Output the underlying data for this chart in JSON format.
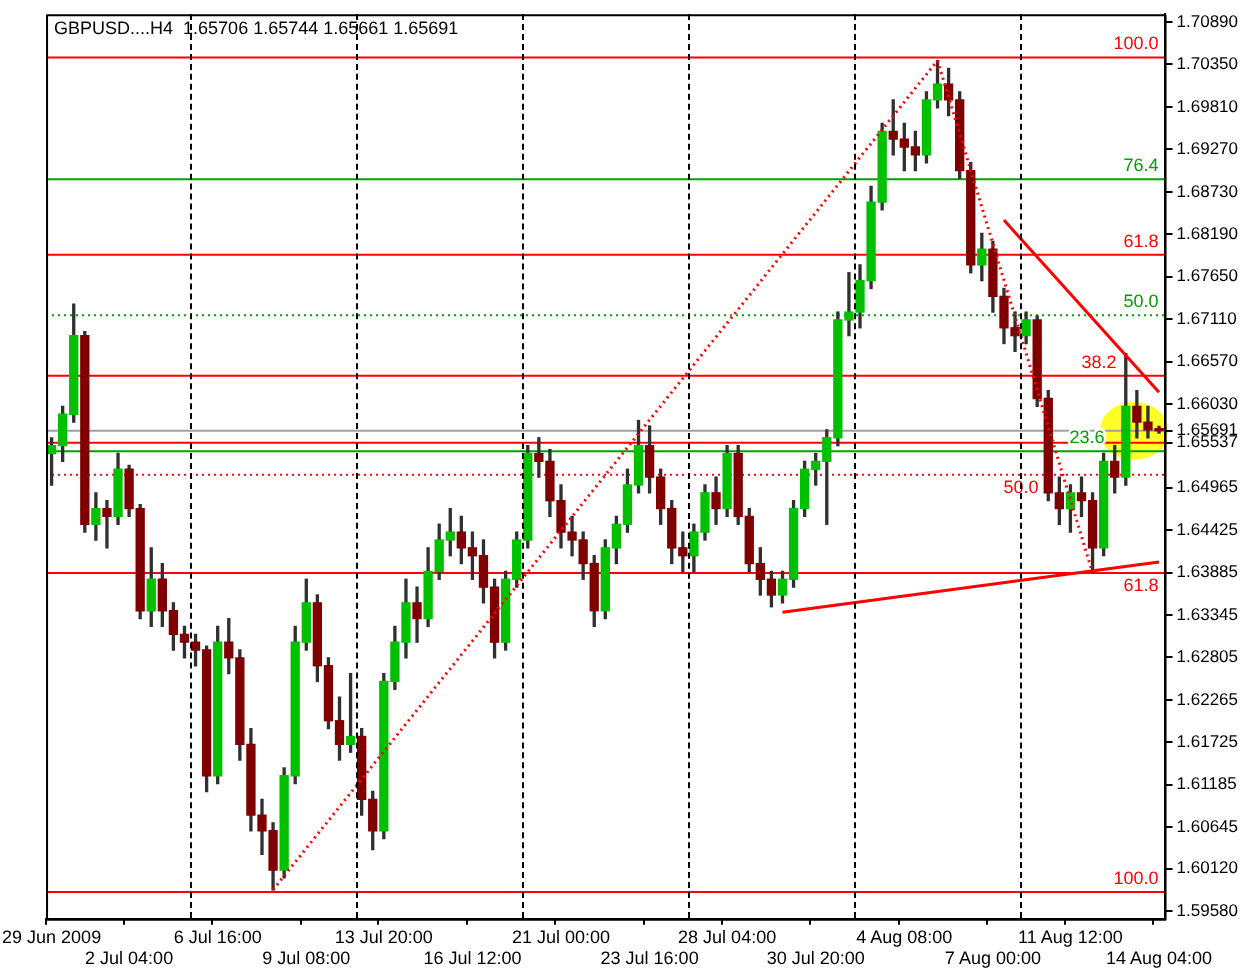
{
  "chart_data": {
    "type": "candlestick",
    "title": "GBPUSD....H4  1.65706 1.65744 1.65661 1.65691",
    "categories": [
      "29 Jun 2009",
      null,
      null,
      null,
      null,
      null,
      null,
      "2 Jul 04:00",
      null,
      null,
      null,
      null,
      null,
      null,
      null,
      "6 Jul 16:00",
      null,
      null,
      null,
      null,
      null,
      null,
      null,
      "9 Jul 08:00",
      null,
      null,
      null,
      null,
      null,
      null,
      "13 Jul 20:00",
      null,
      null,
      null,
      null,
      null,
      null,
      null,
      "16 Jul 12:00",
      null,
      null,
      null,
      null,
      null,
      null,
      null,
      "21 Jul 00:00",
      null,
      null,
      null,
      null,
      null,
      null,
      null,
      "23 Jul 16:00",
      null,
      null,
      null,
      null,
      null,
      null,
      "28 Jul 04:00",
      null,
      null,
      null,
      null,
      null,
      null,
      null,
      "30 Jul 20:00",
      null,
      null,
      null,
      null,
      null,
      null,
      null,
      "4 Aug 08:00",
      null,
      null,
      null,
      null,
      null,
      null,
      null,
      "7 Aug 00:00",
      null,
      null,
      null,
      null,
      null,
      null,
      "11 Aug 12:00",
      null,
      null,
      null,
      null,
      null,
      null,
      null,
      "14 Aug 04:00"
    ],
    "ohlc": [
      [
        1.654,
        1.656,
        1.65,
        1.655
      ],
      [
        1.655,
        1.66,
        1.653,
        1.659
      ],
      [
        1.659,
        1.673,
        1.658,
        1.669
      ],
      [
        1.669,
        1.6695,
        1.644,
        1.645
      ],
      [
        1.645,
        1.649,
        1.643,
        1.647
      ],
      [
        1.647,
        1.648,
        1.642,
        1.646
      ],
      [
        1.646,
        1.654,
        1.645,
        1.652
      ],
      [
        1.652,
        1.6525,
        1.646,
        1.647
      ],
      [
        1.647,
        1.6475,
        1.633,
        1.634
      ],
      [
        1.634,
        1.642,
        1.632,
        1.638
      ],
      [
        1.638,
        1.64,
        1.632,
        1.634
      ],
      [
        1.634,
        1.635,
        1.629,
        1.631
      ],
      [
        1.631,
        1.632,
        1.628,
        1.63
      ],
      [
        1.63,
        1.631,
        1.627,
        1.629
      ],
      [
        1.629,
        1.6295,
        1.611,
        1.613
      ],
      [
        1.613,
        1.632,
        1.612,
        1.63
      ],
      [
        1.63,
        1.633,
        1.626,
        1.628
      ],
      [
        1.628,
        1.629,
        1.615,
        1.617
      ],
      [
        1.617,
        1.619,
        1.606,
        1.608
      ],
      [
        1.608,
        1.61,
        1.603,
        1.606
      ],
      [
        1.606,
        1.607,
        1.5985,
        1.601
      ],
      [
        1.601,
        1.614,
        1.6,
        1.613
      ],
      [
        1.613,
        1.632,
        1.612,
        1.63
      ],
      [
        1.63,
        1.638,
        1.629,
        1.635
      ],
      [
        1.635,
        1.636,
        1.625,
        1.627
      ],
      [
        1.627,
        1.628,
        1.619,
        1.62
      ],
      [
        1.62,
        1.623,
        1.615,
        1.617
      ],
      [
        1.617,
        1.626,
        1.616,
        1.618
      ],
      [
        1.618,
        1.619,
        1.608,
        1.61
      ],
      [
        1.61,
        1.611,
        1.6036,
        1.606
      ],
      [
        1.606,
        1.626,
        1.605,
        1.625
      ],
      [
        1.625,
        1.632,
        1.624,
        1.63
      ],
      [
        1.63,
        1.638,
        1.628,
        1.635
      ],
      [
        1.635,
        1.637,
        1.63,
        1.633
      ],
      [
        1.633,
        1.642,
        1.632,
        1.639
      ],
      [
        1.639,
        1.645,
        1.638,
        1.643
      ],
      [
        1.643,
        1.647,
        1.641,
        1.644
      ],
      [
        1.644,
        1.646,
        1.64,
        1.642
      ],
      [
        1.642,
        1.644,
        1.638,
        1.641
      ],
      [
        1.641,
        1.643,
        1.635,
        1.637
      ],
      [
        1.637,
        1.638,
        1.628,
        1.63
      ],
      [
        1.63,
        1.639,
        1.629,
        1.638
      ],
      [
        1.638,
        1.644,
        1.637,
        1.643
      ],
      [
        1.643,
        1.655,
        1.642,
        1.654
      ],
      [
        1.654,
        1.656,
        1.651,
        1.653
      ],
      [
        1.653,
        1.6545,
        1.646,
        1.648
      ],
      [
        1.648,
        1.65,
        1.642,
        1.644
      ],
      [
        1.644,
        1.646,
        1.641,
        1.643
      ],
      [
        1.643,
        1.644,
        1.638,
        1.64
      ],
      [
        1.64,
        1.641,
        1.632,
        1.634
      ],
      [
        1.634,
        1.643,
        1.633,
        1.642
      ],
      [
        1.642,
        1.646,
        1.64,
        1.645
      ],
      [
        1.645,
        1.652,
        1.644,
        1.65
      ],
      [
        1.65,
        1.6582,
        1.649,
        1.655
      ],
      [
        1.655,
        1.6575,
        1.649,
        1.651
      ],
      [
        1.651,
        1.652,
        1.645,
        1.647
      ],
      [
        1.647,
        1.648,
        1.64,
        1.642
      ],
      [
        1.642,
        1.644,
        1.639,
        1.641
      ],
      [
        1.641,
        1.645,
        1.639,
        1.644
      ],
      [
        1.644,
        1.65,
        1.643,
        1.649
      ],
      [
        1.649,
        1.651,
        1.645,
        1.647
      ],
      [
        1.647,
        1.655,
        1.646,
        1.654
      ],
      [
        1.654,
        1.655,
        1.645,
        1.646
      ],
      [
        1.646,
        1.647,
        1.639,
        1.64
      ],
      [
        1.64,
        1.642,
        1.636,
        1.638
      ],
      [
        1.638,
        1.639,
        1.6345,
        1.636
      ],
      [
        1.636,
        1.639,
        1.635,
        1.638
      ],
      [
        1.638,
        1.648,
        1.637,
        1.647
      ],
      [
        1.647,
        1.653,
        1.646,
        1.652
      ],
      [
        1.652,
        1.654,
        1.65,
        1.653
      ],
      [
        1.653,
        1.657,
        1.645,
        1.656
      ],
      [
        1.656,
        1.672,
        1.655,
        1.671
      ],
      [
        1.671,
        1.677,
        1.669,
        1.672
      ],
      [
        1.672,
        1.678,
        1.67,
        1.676
      ],
      [
        1.676,
        1.688,
        1.675,
        1.686
      ],
      [
        1.686,
        1.696,
        1.685,
        1.695
      ],
      [
        1.695,
        1.699,
        1.692,
        1.694
      ],
      [
        1.694,
        1.696,
        1.69,
        1.693
      ],
      [
        1.693,
        1.695,
        1.69,
        1.692
      ],
      [
        1.692,
        1.7,
        1.691,
        1.699
      ],
      [
        1.699,
        1.704,
        1.698,
        1.701
      ],
      [
        1.701,
        1.703,
        1.697,
        1.699
      ],
      [
        1.699,
        1.7,
        1.689,
        1.69
      ],
      [
        1.69,
        1.691,
        1.677,
        1.678
      ],
      [
        1.678,
        1.682,
        1.676,
        1.68
      ],
      [
        1.68,
        1.681,
        1.672,
        1.674
      ],
      [
        1.674,
        1.675,
        1.668,
        1.67
      ],
      [
        1.67,
        1.672,
        1.667,
        1.669
      ],
      [
        1.669,
        1.672,
        1.668,
        1.671
      ],
      [
        1.671,
        1.6715,
        1.66,
        1.661
      ],
      [
        1.661,
        1.662,
        1.648,
        1.649
      ],
      [
        1.649,
        1.651,
        1.645,
        1.647
      ],
      [
        1.647,
        1.65,
        1.644,
        1.649
      ],
      [
        1.649,
        1.651,
        1.646,
        1.648
      ],
      [
        1.648,
        1.649,
        1.6388,
        1.642
      ],
      [
        1.642,
        1.654,
        1.641,
        1.653
      ],
      [
        1.653,
        1.655,
        1.649,
        1.651
      ],
      [
        1.651,
        1.6667,
        1.65,
        1.66
      ],
      [
        1.66,
        1.662,
        1.656,
        1.658
      ],
      [
        1.658,
        1.66,
        1.656,
        1.657
      ],
      [
        1.65706,
        1.65744,
        1.65661,
        1.65691
      ]
    ],
    "series": [
      {
        "type": "line",
        "color": "#ff0000",
        "values": [
          null,
          null,
          null,
          null,
          null,
          null,
          null,
          null,
          null,
          null,
          null,
          null,
          null,
          null,
          null,
          null,
          null,
          null,
          null,
          null,
          null,
          null,
          null,
          null,
          null,
          null,
          null,
          null,
          null,
          null,
          null,
          null,
          null,
          null,
          null,
          null,
          null,
          null,
          null,
          null,
          null,
          null,
          null,
          null,
          null,
          null,
          null,
          null,
          null,
          null,
          null,
          null,
          null,
          null,
          null,
          null,
          null,
          null,
          null,
          null,
          null,
          null,
          null,
          null,
          null,
          null,
          1.6338,
          null,
          null,
          null,
          null,
          null,
          null,
          null,
          null,
          null,
          null,
          null,
          null,
          null,
          null,
          null,
          null,
          null,
          null,
          null,
          null,
          null,
          null,
          null,
          null,
          null,
          null,
          null,
          null,
          null,
          null,
          null,
          null,
          null,
          1.6402
        ]
      },
      {
        "type": "line",
        "color": "#ff0000",
        "values": [
          null,
          null,
          null,
          null,
          null,
          null,
          null,
          null,
          null,
          null,
          null,
          null,
          null,
          null,
          null,
          null,
          null,
          null,
          null,
          null,
          null,
          null,
          null,
          null,
          null,
          null,
          null,
          null,
          null,
          null,
          null,
          null,
          null,
          null,
          null,
          null,
          null,
          null,
          null,
          null,
          null,
          null,
          null,
          null,
          null,
          null,
          null,
          null,
          null,
          null,
          null,
          null,
          null,
          null,
          null,
          null,
          null,
          null,
          null,
          null,
          null,
          null,
          null,
          null,
          null,
          null,
          null,
          null,
          null,
          null,
          null,
          null,
          null,
          null,
          null,
          null,
          null,
          null,
          null,
          null,
          null,
          null,
          null,
          null,
          null,
          null,
          1.6837,
          null,
          null,
          null,
          null,
          null,
          null,
          null,
          null,
          null,
          null,
          null,
          null,
          null,
          1.6618
        ]
      },
      {
        "type": "line",
        "color": "#ff0000",
        "line_style": "dotted",
        "values": [
          null,
          null,
          null,
          null,
          null,
          null,
          null,
          null,
          null,
          null,
          null,
          null,
          null,
          null,
          null,
          null,
          null,
          null,
          null,
          null,
          1.5985,
          null,
          null,
          null,
          null,
          null,
          null,
          null,
          null,
          null,
          null,
          null,
          null,
          null,
          null,
          null,
          null,
          null,
          null,
          null,
          null,
          null,
          null,
          null,
          null,
          null,
          null,
          null,
          null,
          null,
          null,
          null,
          null,
          null,
          null,
          null,
          null,
          null,
          null,
          null,
          null,
          null,
          null,
          null,
          null,
          null,
          null,
          null,
          null,
          null,
          null,
          null,
          null,
          null,
          null,
          null,
          null,
          null,
          null,
          null,
          1.704,
          null,
          null,
          null,
          null,
          null,
          null,
          null,
          null,
          null,
          null,
          null,
          null,
          null,
          null,
          null,
          null,
          null,
          null,
          null,
          null
        ]
      },
      {
        "type": "line",
        "color": "#ff0000",
        "line_style": "dotted",
        "values": [
          null,
          null,
          null,
          null,
          null,
          null,
          null,
          null,
          null,
          null,
          null,
          null,
          null,
          null,
          null,
          null,
          null,
          null,
          null,
          null,
          null,
          null,
          null,
          null,
          null,
          null,
          null,
          null,
          null,
          null,
          null,
          null,
          null,
          null,
          null,
          null,
          null,
          null,
          null,
          null,
          null,
          null,
          null,
          null,
          null,
          null,
          null,
          null,
          null,
          null,
          null,
          null,
          null,
          null,
          null,
          null,
          null,
          null,
          null,
          null,
          null,
          null,
          null,
          null,
          null,
          null,
          null,
          null,
          null,
          null,
          null,
          null,
          null,
          null,
          null,
          null,
          null,
          null,
          null,
          null,
          1.704,
          null,
          null,
          null,
          null,
          null,
          null,
          null,
          null,
          null,
          null,
          null,
          null,
          null,
          1.6388,
          null,
          null,
          null,
          null,
          null,
          null
        ]
      }
    ],
    "ref_lines": [
      {
        "axis": "y",
        "value": 1.7044,
        "color": "#ff0000"
      },
      {
        "axis": "y",
        "value": 1.6889,
        "color": "#00a000"
      },
      {
        "axis": "y",
        "value": 1.6793,
        "color": "#ff0000"
      },
      {
        "axis": "y",
        "value": 1.6716,
        "color": "#00a000",
        "line_style": "dotted"
      },
      {
        "axis": "y",
        "value": 1.6639,
        "color": "#ff0000"
      },
      {
        "axis": "y",
        "value": 1.65691,
        "color": "#a0a0a0"
      },
      {
        "axis": "y",
        "value": 1.65537,
        "color": "#ff0000"
      },
      {
        "axis": "y",
        "value": 1.6543,
        "color": "#00a000"
      },
      {
        "axis": "y",
        "value": 1.6513,
        "color": "#ff0000",
        "line_style": "dotted"
      },
      {
        "axis": "y",
        "value": 1.6388,
        "color": "#ff0000"
      },
      {
        "axis": "y",
        "value": 1.5982,
        "color": "#ff0000"
      }
    ],
    "annotations": [
      {
        "text": "100.0",
        "y": 1.7044
      },
      {
        "text": "76.4",
        "y": 1.6889
      },
      {
        "text": "61.8",
        "y": 1.6793
      },
      {
        "text": "50.0",
        "y": 1.6716
      },
      {
        "text": "38.2",
        "y": 1.6639
      },
      {
        "text": "23.6",
        "y": 1.6543
      },
      {
        "text": "50.0",
        "y": 1.6513
      },
      {
        "text": "61.8",
        "y": 1.6388
      },
      {
        "text": "100.0",
        "y": 1.5982
      }
    ],
    "ylim": [
      1.5948,
      1.7099
    ],
    "yticks": [
      {
        "value": 1.7089,
        "label": "1.70890"
      },
      {
        "value": 1.7035,
        "label": "1.70350"
      },
      {
        "value": 1.6981,
        "label": "1.69810"
      },
      {
        "value": 1.6927,
        "label": "1.69270"
      },
      {
        "value": 1.6873,
        "label": "1.68730"
      },
      {
        "value": 1.6819,
        "label": "1.68190"
      },
      {
        "value": 1.6765,
        "label": "1.67650"
      },
      {
        "value": 1.6711,
        "label": "1.67110"
      },
      {
        "value": 1.6657,
        "label": "1.66570"
      },
      {
        "value": 1.6603,
        "label": "1.66030"
      },
      {
        "value": 1.65691,
        "label": "1.65691"
      },
      {
        "value": 1.65537,
        "label": "1.65537"
      },
      {
        "value": 1.64965,
        "label": "1.64965"
      },
      {
        "value": 1.64425,
        "label": "1.64425"
      },
      {
        "value": 1.63885,
        "label": "1.63885"
      },
      {
        "value": 1.63345,
        "label": "1.63345"
      },
      {
        "value": 1.62805,
        "label": "1.62805"
      },
      {
        "value": 1.62265,
        "label": "1.62265"
      },
      {
        "value": 1.61725,
        "label": "1.61725"
      },
      {
        "value": 1.61185,
        "label": "1.61185"
      },
      {
        "value": 1.60645,
        "label": "1.60645"
      },
      {
        "value": 1.6012,
        "label": "1.60120"
      },
      {
        "value": 1.5958,
        "label": "1.59580"
      }
    ],
    "grid": false,
    "legend": false
  }
}
